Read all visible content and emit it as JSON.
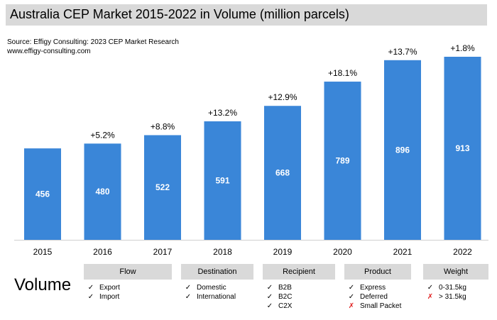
{
  "title": "Australia CEP Market 2015-2022 in Volume (million parcels)",
  "source_lines": [
    "Source: Effigy Consulting: 2023 CEP Market Research",
    "www.effigy-consulting.com"
  ],
  "chart_data": {
    "type": "bar",
    "categories": [
      "2015",
      "2016",
      "2017",
      "2018",
      "2019",
      "2020",
      "2021",
      "2022"
    ],
    "values": [
      456,
      480,
      522,
      591,
      668,
      789,
      896,
      913
    ],
    "growth_labels": [
      "",
      "+5.2%",
      "+8.8%",
      "+13.2%",
      "+12.9%",
      "+18.1%",
      "+13.7%",
      "+1.8%"
    ],
    "ylim": [
      0,
      913
    ],
    "grid": false,
    "bar_color": "#3a86d8"
  },
  "volume_label": "Volume",
  "legend": [
    {
      "header": "Flow",
      "items": [
        {
          "mark": "check",
          "text": "Export"
        },
        {
          "mark": "check",
          "text": "Import"
        }
      ]
    },
    {
      "header": "Destination",
      "items": [
        {
          "mark": "check",
          "text": "Domestic"
        },
        {
          "mark": "check",
          "text": "International"
        }
      ]
    },
    {
      "header": "Recipient",
      "items": [
        {
          "mark": "check",
          "text": "B2B"
        },
        {
          "mark": "check",
          "text": "B2C"
        },
        {
          "mark": "check",
          "text": "C2X"
        }
      ]
    },
    {
      "header": "Product",
      "items": [
        {
          "mark": "check",
          "text": "Express"
        },
        {
          "mark": "check",
          "text": "Deferred"
        },
        {
          "mark": "cross",
          "text": "Small Packet"
        }
      ]
    },
    {
      "header": "Weight",
      "items": [
        {
          "mark": "check",
          "text": "0-31.5kg"
        },
        {
          "mark": "cross",
          "text": "> 31.5kg"
        }
      ]
    }
  ]
}
